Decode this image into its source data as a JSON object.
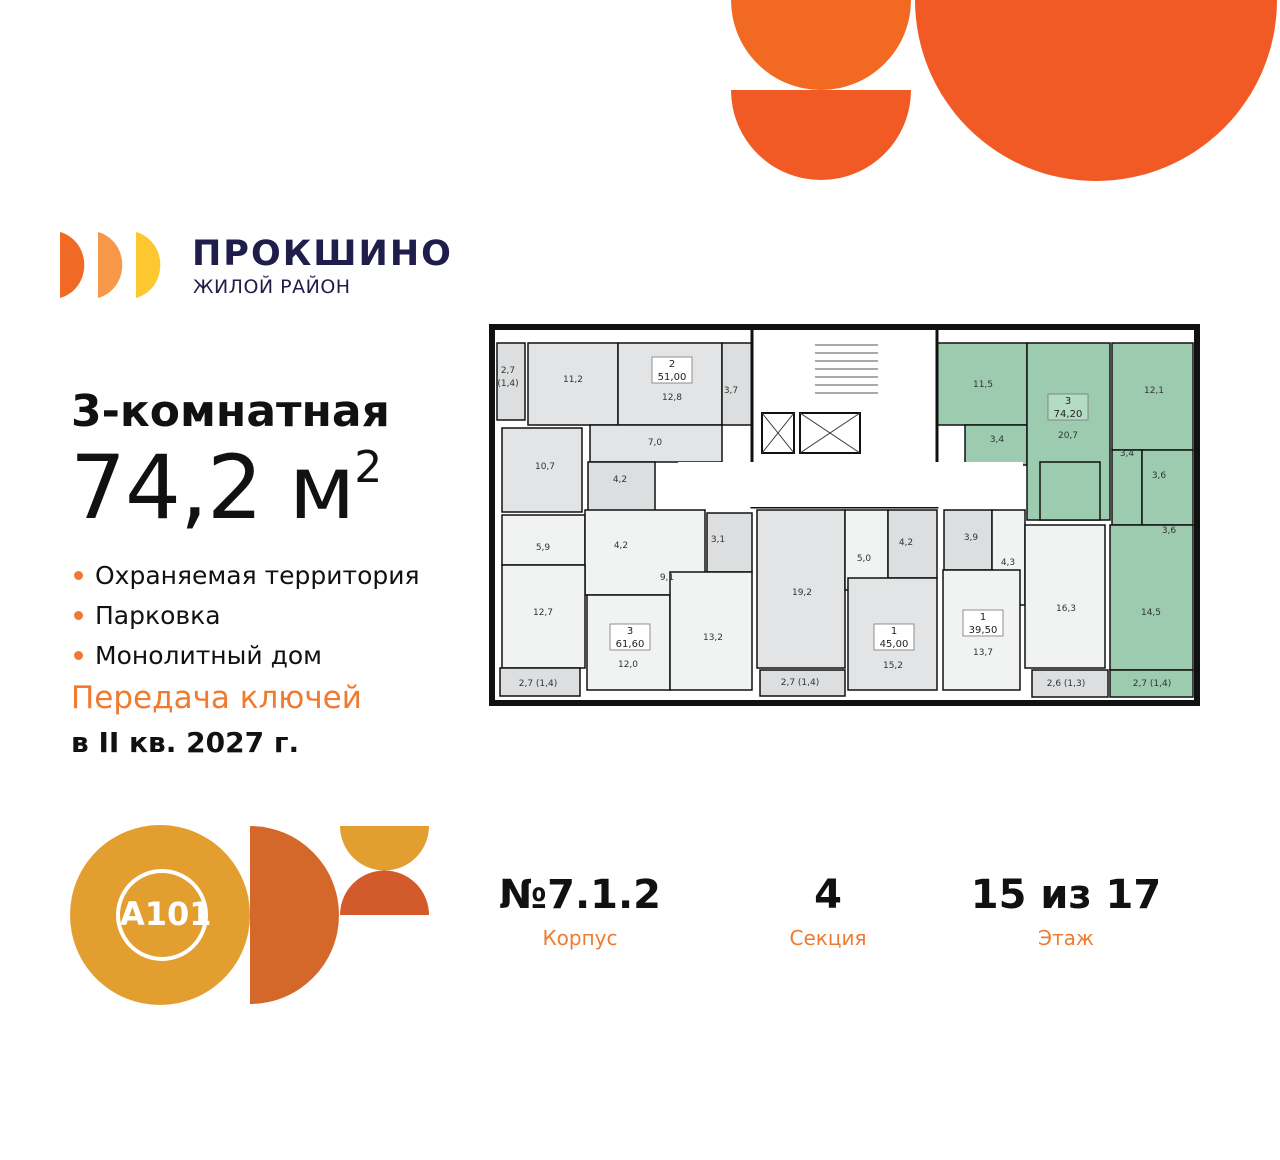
{
  "brand": {
    "name": "ПРОКШИНО",
    "subtitle": "ЖИЛОЙ РАЙОН"
  },
  "developer_logo": "A101",
  "apartment": {
    "rooms_label": "3-комнатная",
    "area": "74,2 м",
    "area_unit_sup": "2",
    "features": [
      "Охраняемая территория",
      "Парковка",
      "Монолитный дом"
    ],
    "handover_label": "Передача ключей",
    "handover_date": "в II кв. 2027 г."
  },
  "stats": [
    {
      "value": "№7.1.2",
      "label": "Корпус"
    },
    {
      "value": "4",
      "label": "Секция"
    },
    {
      "value": "15 из 17",
      "label": "Этаж"
    }
  ],
  "plan": {
    "highlight_color": "#9ccbb0",
    "units": [
      {
        "rooms": "2",
        "area": "51,00"
      },
      {
        "rooms": "3",
        "area": "61,60"
      },
      {
        "rooms": "1",
        "area": "45,00"
      },
      {
        "rooms": "1",
        "area": "39,50"
      },
      {
        "rooms": "3",
        "area": "74,20",
        "highlighted": true
      }
    ],
    "room_labels": [
      "11,2",
      "12,8",
      "3,7",
      "2,7",
      "(1,4)",
      "7,0",
      "10,7",
      "4,2",
      "5,9",
      "4,2",
      "9,1",
      "3,1",
      "12,7",
      "12,0",
      "13,2",
      "2,7 (1,4)",
      "19,2",
      "2,7 (1,4)",
      "5,0",
      "4,2",
      "15,2",
      "3,9",
      "4,3",
      "13,7",
      "16,3",
      "2,6 (1,3)",
      "11,5",
      "3,4",
      "20,7",
      "12,1",
      "3,4",
      "3,6",
      "3,6",
      "14,5",
      "2,7 (1,4)"
    ]
  },
  "colors": {
    "accent_orange": "#f15a24",
    "brand_navy": "#1f1d4a",
    "gold": "#e39e30",
    "rust": "#d4682a"
  }
}
